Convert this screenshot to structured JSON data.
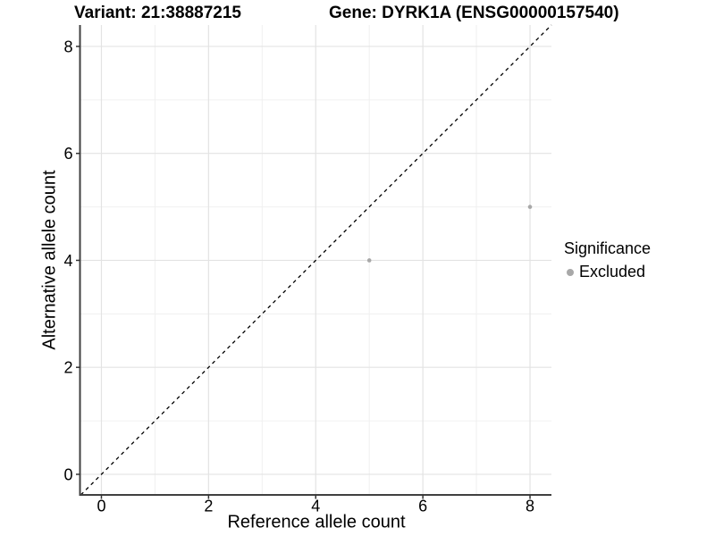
{
  "header": {
    "variant_title": "Variant: 21:38887215",
    "gene_title": "Gene: DYRK1A (ENSG00000157540)"
  },
  "chart_data": {
    "type": "scatter",
    "xlabel": "Reference allele count",
    "ylabel": "Alternative allele count",
    "xlim": [
      -0.4,
      8.4
    ],
    "ylim": [
      -0.385,
      8.4
    ],
    "x_ticks": [
      0,
      2,
      4,
      6,
      8
    ],
    "y_ticks": [
      0,
      2,
      4,
      6,
      8
    ],
    "x_minor": [
      1,
      3,
      5,
      7
    ],
    "y_minor": [
      1,
      3,
      5,
      7
    ],
    "grid": true,
    "identity_line": {
      "equation": "y = x",
      "style": "dashed",
      "color": "#000000"
    },
    "series": [
      {
        "name": "Excluded",
        "color": "#a8a8a8",
        "point_radius": 2.3,
        "points": [
          [
            5,
            4
          ],
          [
            8,
            5
          ]
        ]
      }
    ],
    "legend": {
      "title": "Significance",
      "position": "right",
      "items": [
        {
          "label": "Excluded",
          "color": "#a8a8a8"
        }
      ]
    }
  },
  "colors": {
    "background": "#ffffff",
    "grid_major": "#e3e3e3",
    "grid_minor": "#f0f0f0",
    "axis_line": "#404040",
    "tick": "#333333",
    "text": "#000000",
    "point": "#a8a8a8",
    "identity": "#000000"
  }
}
